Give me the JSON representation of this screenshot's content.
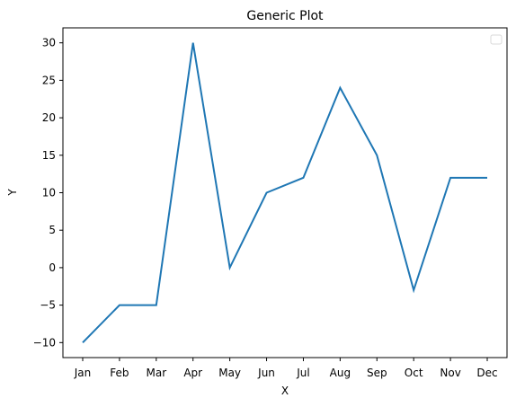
{
  "chart_data": {
    "type": "line",
    "title": "Generic Plot",
    "xlabel": "X",
    "ylabel": "Y",
    "categories": [
      "Jan",
      "Feb",
      "Mar",
      "Apr",
      "May",
      "Jun",
      "Jul",
      "Aug",
      "Sep",
      "Oct",
      "Nov",
      "Dec"
    ],
    "series": [
      {
        "values": [
          -10,
          -5,
          -5,
          30,
          0,
          10,
          12,
          24,
          15,
          -3,
          12,
          12
        ],
        "color": "#1f77b4"
      }
    ],
    "ylim": [
      -12,
      32
    ],
    "yticks": [
      -10,
      -5,
      0,
      5,
      10,
      15,
      20,
      25,
      30
    ],
    "ytick_labels": [
      "−10",
      "−5",
      "0",
      "5",
      "10",
      "15",
      "20",
      "25",
      "30"
    ],
    "grid": false,
    "legend": {
      "placement": "top-right",
      "entries": []
    }
  }
}
